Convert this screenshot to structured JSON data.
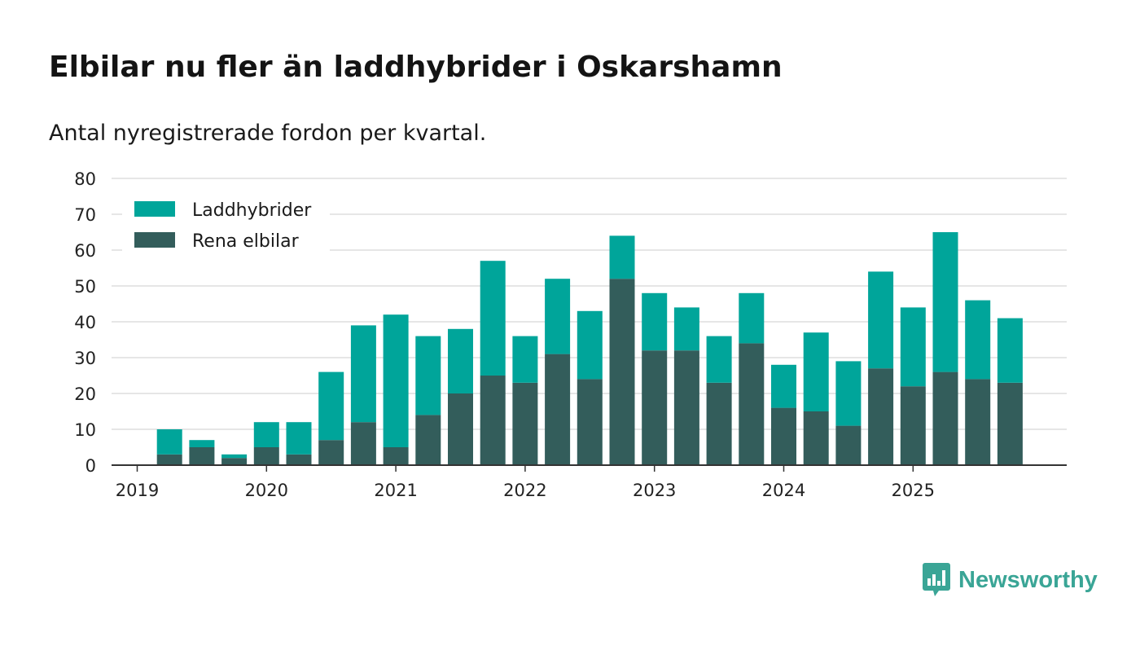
{
  "title": "Elbilar nu fler än laddhybrider i Oskarshamn",
  "subtitle": "Antal nyregistrerade fordon per kvartal.",
  "brand": {
    "name": "Newsworthy",
    "icon": "newsworthy-logo-icon"
  },
  "colors": {
    "laddhybrider": "#00a59a",
    "rena_elbilar": "#335d5b",
    "grid": "#dddddd",
    "axis": "#333333",
    "brand": "#3aa596"
  },
  "chart_data": {
    "type": "bar",
    "stacked": true,
    "title": "Elbilar nu fler än laddhybrider i Oskarshamn",
    "xlabel": "",
    "ylabel": "",
    "ylim": [
      0,
      80
    ],
    "yticks": [
      0,
      10,
      20,
      30,
      40,
      50,
      60,
      70,
      80
    ],
    "xticks": [
      "2019",
      "2020",
      "2021",
      "2022",
      "2023",
      "2024",
      "2025"
    ],
    "legend_position": "top-left",
    "categories": [
      "2019 Q1",
      "2019 Q2",
      "2019 Q3",
      "2019 Q4",
      "2020 Q1",
      "2020 Q2",
      "2020 Q3",
      "2020 Q4",
      "2021 Q1",
      "2021 Q2",
      "2021 Q3",
      "2021 Q4",
      "2022 Q1",
      "2022 Q2",
      "2022 Q3",
      "2022 Q4",
      "2023 Q1",
      "2023 Q2",
      "2023 Q3",
      "2023 Q4",
      "2024 Q1",
      "2024 Q2",
      "2024 Q3",
      "2024 Q4",
      "2025 Q1",
      "2025 Q2",
      "2025 Q3",
      "2025 Q4"
    ],
    "series": [
      {
        "name": "Rena elbilar",
        "key": "rena_elbilar",
        "values": [
          0,
          3,
          5,
          2,
          5,
          3,
          7,
          12,
          5,
          14,
          20,
          25,
          23,
          31,
          24,
          52,
          32,
          32,
          23,
          34,
          16,
          15,
          11,
          27,
          22,
          26,
          24,
          23
        ]
      },
      {
        "name": "Laddhybrider",
        "key": "laddhybrider",
        "values": [
          0,
          7,
          2,
          1,
          7,
          9,
          19,
          27,
          37,
          22,
          18,
          32,
          13,
          21,
          19,
          12,
          16,
          12,
          13,
          14,
          12,
          22,
          18,
          27,
          22,
          39,
          22,
          18
        ]
      }
    ],
    "legend": [
      "Laddhybrider",
      "Rena elbilar"
    ]
  }
}
